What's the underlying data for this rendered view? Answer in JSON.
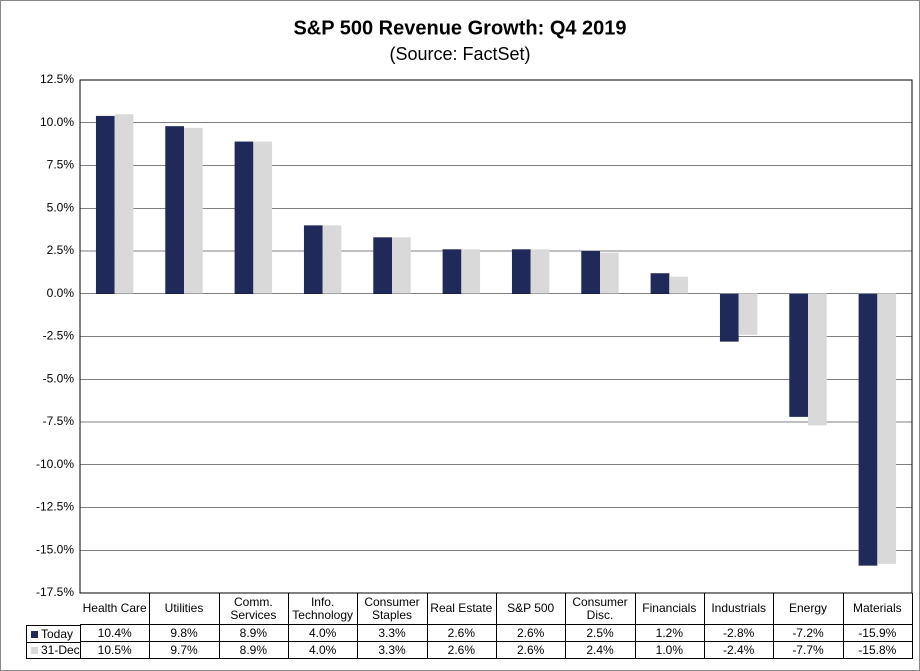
{
  "chart_data": {
    "type": "bar",
    "title": "S&P 500 Revenue Growth: Q4 2019",
    "subtitle": "(Source: FactSet)",
    "categories": [
      "Health Care",
      "Utilities",
      "Comm.\nServices",
      "Info.\nTechnology",
      "Consumer\nStaples",
      "Real Estate",
      "S&P 500",
      "Consumer\nDisc.",
      "Financials",
      "Industrials",
      "Energy",
      "Materials"
    ],
    "series": [
      {
        "name": "Today",
        "color": "#1f2a5a",
        "values": [
          10.4,
          9.8,
          8.9,
          4.0,
          3.3,
          2.6,
          2.6,
          2.5,
          1.2,
          -2.8,
          -7.2,
          -15.9
        ],
        "value_labels": [
          "10.4%",
          "9.8%",
          "8.9%",
          "4.0%",
          "3.3%",
          "2.6%",
          "2.6%",
          "2.5%",
          "1.2%",
          "-2.8%",
          "-7.2%",
          "-15.9%"
        ]
      },
      {
        "name": "31-Dec",
        "color": "#d9d9d9",
        "values": [
          10.5,
          9.7,
          8.9,
          4.0,
          3.3,
          2.6,
          2.6,
          2.4,
          1.0,
          -2.4,
          -7.7,
          -15.8
        ],
        "value_labels": [
          "10.5%",
          "9.7%",
          "8.9%",
          "4.0%",
          "3.3%",
          "2.6%",
          "2.6%",
          "2.4%",
          "1.0%",
          "-2.4%",
          "-7.7%",
          "-15.8%"
        ]
      }
    ],
    "ylim": [
      -17.5,
      12.5
    ],
    "yticks": [
      {
        "value": -17.5,
        "label": "-17.5%"
      },
      {
        "value": -15,
        "label": "-15.0%"
      },
      {
        "value": -12.5,
        "label": "-12.5%"
      },
      {
        "value": -10,
        "label": "-10.0%"
      },
      {
        "value": -7.5,
        "label": "-7.5%"
      },
      {
        "value": -5,
        "label": "-5.0%"
      },
      {
        "value": -2.5,
        "label": "-2.5%"
      },
      {
        "value": 0,
        "label": "0.0%"
      },
      {
        "value": 2.5,
        "label": "2.5%"
      },
      {
        "value": 5,
        "label": "5.0%"
      },
      {
        "value": 7.5,
        "label": "7.5%"
      },
      {
        "value": 10,
        "label": "10.0%"
      },
      {
        "value": 12.5,
        "label": "12.5%"
      }
    ],
    "grid": true
  }
}
